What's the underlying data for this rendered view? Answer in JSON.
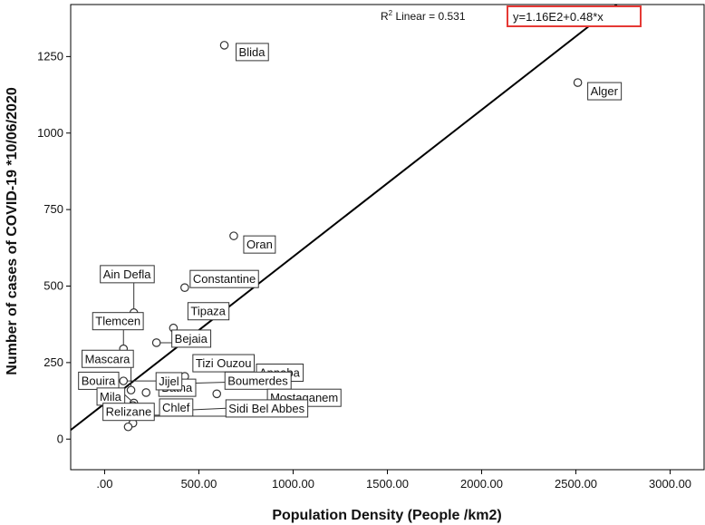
{
  "chart_data": {
    "type": "scatter",
    "title": "",
    "xlabel": "Population Density (People /km2)",
    "ylabel": "Number  of cases of COVID-19 *10/06/2020",
    "xlim": [
      -180,
      3180
    ],
    "ylim": [
      -100,
      1420
    ],
    "xticks": [
      0,
      500,
      1000,
      1500,
      2000,
      2500,
      3000
    ],
    "xtick_labels": [
      ".00",
      "500.00",
      "1000.00",
      "1500.00",
      "2000.00",
      "2500.00",
      "3000.00"
    ],
    "yticks": [
      0,
      250,
      500,
      750,
      1000,
      1250
    ],
    "ytick_labels": [
      "0",
      "250",
      "500",
      "750",
      "1000",
      "1250"
    ],
    "r2_prefix": "R",
    "r2_sup": "2",
    "r2_text": " Linear = 0.531",
    "equation": "y=1.16E2+0.48*x",
    "fit": {
      "intercept": 116,
      "slope": 0.48
    },
    "fit_line_color": "#000000",
    "equation_box_color": "#e53935",
    "points": [
      {
        "name": "Blida",
        "x": 635,
        "y": 1287
      },
      {
        "name": "Alger",
        "x": 2510,
        "y": 1165
      },
      {
        "name": "Oran",
        "x": 685,
        "y": 664
      },
      {
        "name": "Constantine",
        "x": 425,
        "y": 495
      },
      {
        "name": "Ain Defla",
        "x": 155,
        "y": 413
      },
      {
        "name": "Tipaza",
        "x": 365,
        "y": 363
      },
      {
        "name": "Bejaia",
        "x": 275,
        "y": 315
      },
      {
        "name": "Tlemcen",
        "x": 100,
        "y": 295
      },
      {
        "name": "Batna",
        "x": 100,
        "y": 190
      },
      {
        "name": "Mascara",
        "x": 140,
        "y": 160
      },
      {
        "name": "Tizi Ouzou",
        "x": 425,
        "y": 205
      },
      {
        "name": "Annaba",
        "x": 320,
        "y": 180
      },
      {
        "name": "Boumerdes",
        "x": 595,
        "y": 148
      },
      {
        "name": "Jijel",
        "x": 220,
        "y": 152
      },
      {
        "name": "Bouira",
        "x": 155,
        "y": 118
      },
      {
        "name": "Mostaganem",
        "x": 330,
        "y": 92
      },
      {
        "name": "Sidi Bel Abbes",
        "x": 230,
        "y": 75
      },
      {
        "name": "Mila",
        "x": 75,
        "y": 90
      },
      {
        "name": "Relizane",
        "x": 150,
        "y": 52
      },
      {
        "name": "Chlef",
        "x": 200,
        "y": 78
      },
      {
        "name": "",
        "x": 95,
        "y": 82
      },
      {
        "name": "",
        "x": 125,
        "y": 40
      },
      {
        "name": "",
        "x": 150,
        "y": 110
      }
    ]
  }
}
